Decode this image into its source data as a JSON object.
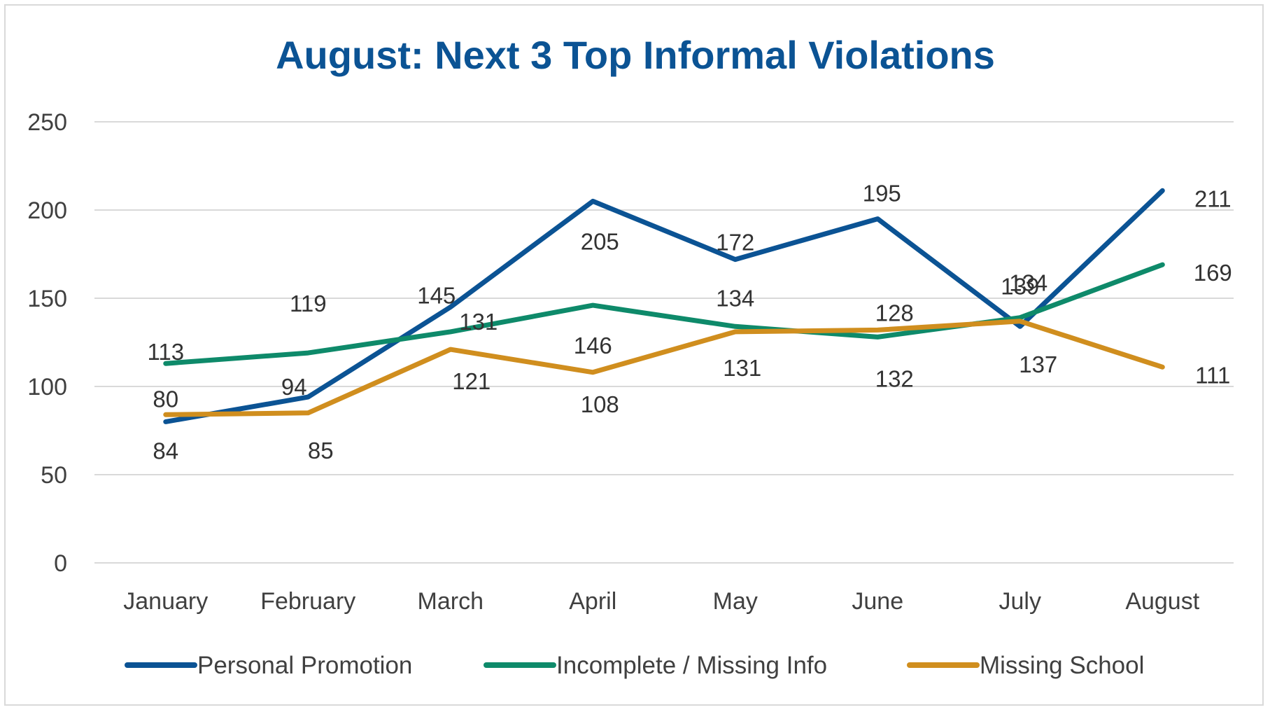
{
  "chart_data": {
    "type": "line",
    "title": "August: Next 3 Top Informal Violations",
    "xlabel": "",
    "ylabel": "",
    "categories": [
      "January",
      "February",
      "March",
      "April",
      "May",
      "June",
      "July",
      "August"
    ],
    "ylim": [
      0,
      250
    ],
    "yticks": [
      0,
      50,
      100,
      150,
      200,
      250
    ],
    "grid": true,
    "legend_position": "bottom",
    "series": [
      {
        "name": "Personal Promotion",
        "color": "#0b5394",
        "values": [
          80,
          94,
          145,
          205,
          172,
          195,
          134,
          211
        ]
      },
      {
        "name": "Incomplete / Missing Info",
        "color": "#0e8a6a",
        "values": [
          113,
          119,
          131,
          146,
          134,
          128,
          139,
          169
        ]
      },
      {
        "name": "Missing School",
        "color": "#d08e1e",
        "values": [
          84,
          85,
          121,
          108,
          131,
          132,
          137,
          111
        ]
      }
    ]
  }
}
